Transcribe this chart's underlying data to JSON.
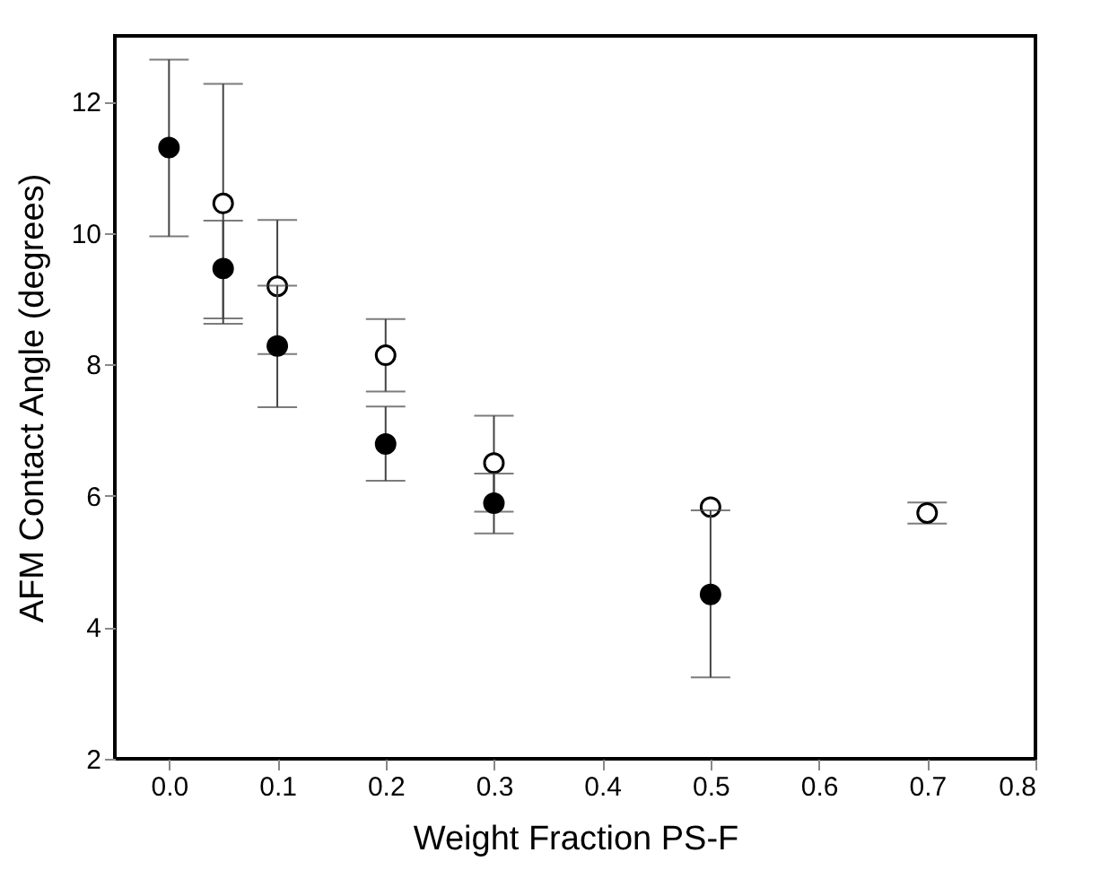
{
  "chart_data": {
    "type": "scatter",
    "xlabel": "Weight Fraction PS-F",
    "ylabel": "AFM Contact Angle (degrees)",
    "xlim": [
      -0.05,
      0.8
    ],
    "xticks": [
      {
        "value": 0.0,
        "label": "0.0"
      },
      0.1,
      0.2,
      0.3,
      0.4,
      0.5,
      0.6,
      0.7,
      0.8
    ],
    "ylim": [
      2,
      13
    ],
    "yticks": [
      2,
      4,
      6,
      8,
      10,
      12
    ],
    "grid": false,
    "marker": "circle",
    "series": [
      {
        "color": "#ffffff",
        "x": [
          0.05,
          0.1,
          0.2,
          0.3,
          0.5,
          0.7
        ],
        "values": [
          10.45,
          9.19,
          8.14,
          6.5,
          5.83,
          5.74
        ],
        "errors": [
          [
            8.7,
            12.27
          ],
          [
            8.16,
            10.2
          ],
          [
            7.59,
            8.69
          ],
          [
            5.76,
            7.22
          ],
          null,
          [
            5.58,
            5.9
          ]
        ]
      },
      {
        "color": "#000000",
        "x": [
          0.0,
          0.05,
          0.1,
          0.2,
          0.3,
          0.5
        ],
        "values": [
          11.3,
          9.46,
          8.28,
          6.79,
          5.89,
          4.5
        ],
        "errors": [
          [
            9.95,
            12.64
          ],
          [
            8.62,
            10.19
          ],
          [
            7.35,
            9.2
          ],
          [
            6.23,
            7.36
          ],
          [
            5.43,
            6.34
          ],
          [
            3.24,
            5.78
          ]
        ]
      }
    ]
  }
}
